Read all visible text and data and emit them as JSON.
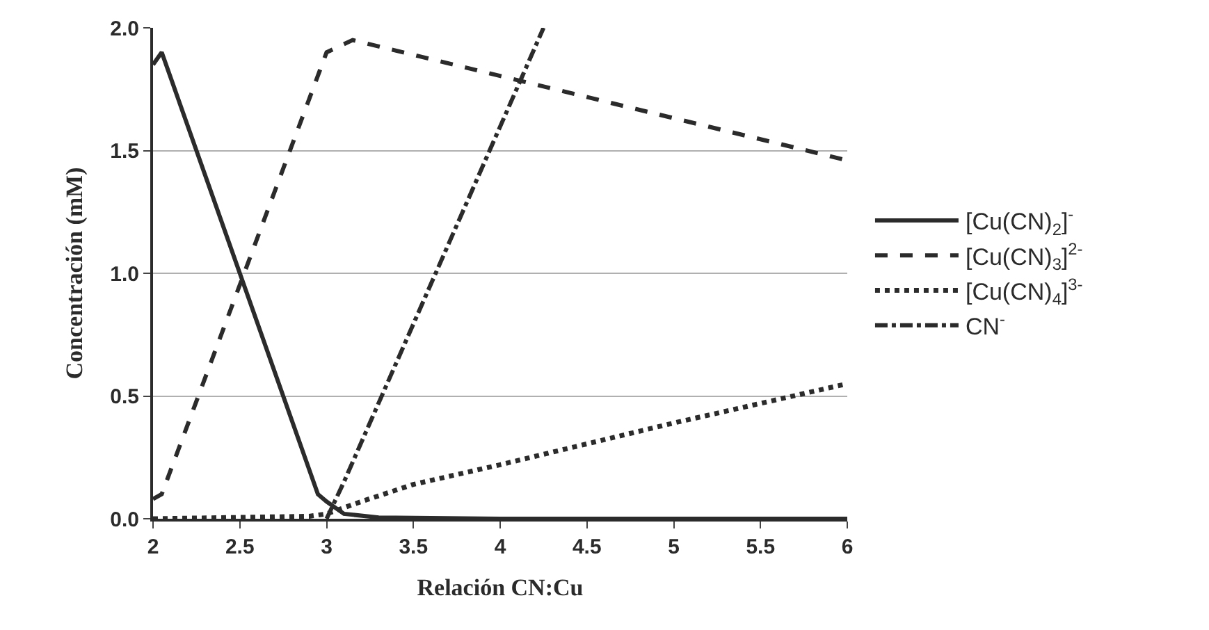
{
  "chart_data": {
    "type": "line",
    "xlabel": "Relación CN:Cu",
    "ylabel": "Concentración (mM)",
    "xlim": [
      2,
      6
    ],
    "xticks": [
      2,
      2.5,
      3,
      3.5,
      4,
      4.5,
      5,
      5.5,
      6
    ],
    "ylim": [
      0,
      2
    ],
    "yticks": [
      {
        "value": 0,
        "label": "0.0"
      },
      {
        "value": 0.5,
        "label": "0.5"
      },
      {
        "value": 1,
        "label": "1.0"
      },
      {
        "value": 1.5,
        "label": "1.5"
      },
      {
        "value": 2,
        "label": "2.0"
      }
    ],
    "grid": "y",
    "legend": "right",
    "marker": "none",
    "series": [
      {
        "name": "[Cu(CN)$_{2}$]$^{-}$",
        "color": "#2b2b2b",
        "line_style": "solid",
        "x": [
          2.0,
          2.05,
          2.5,
          2.95,
          3.0,
          3.1,
          3.3,
          4.0,
          6.0
        ],
        "values": [
          1.85,
          1.9,
          1.0,
          0.1,
          0.07,
          0.02,
          0.005,
          0,
          0
        ]
      },
      {
        "name": "[Cu(CN)$_{3}$]$^{2-}$",
        "color": "#2b2b2b",
        "line_style": "dashed",
        "x": [
          2.0,
          2.05,
          3.0,
          3.15,
          6.0
        ],
        "values": [
          0.08,
          0.1,
          1.9,
          1.95,
          1.46
        ]
      },
      {
        "name": "[Cu(CN)$_{4}$]$^{3-}$",
        "color": "#2b2b2b",
        "line_style": "dotted",
        "x": [
          2.0,
          2.9,
          3.0,
          3.2,
          3.5,
          4.0,
          5.0,
          6.0
        ],
        "values": [
          0,
          0.01,
          0.02,
          0.07,
          0.14,
          0.22,
          0.39,
          0.55
        ]
      },
      {
        "name": "CN$^{-}$",
        "color": "#2b2b2b",
        "line_style": "dashdot",
        "x": [
          3.0,
          3.1,
          4.25
        ],
        "values": [
          0.0,
          0.15,
          2.0
        ]
      }
    ]
  }
}
